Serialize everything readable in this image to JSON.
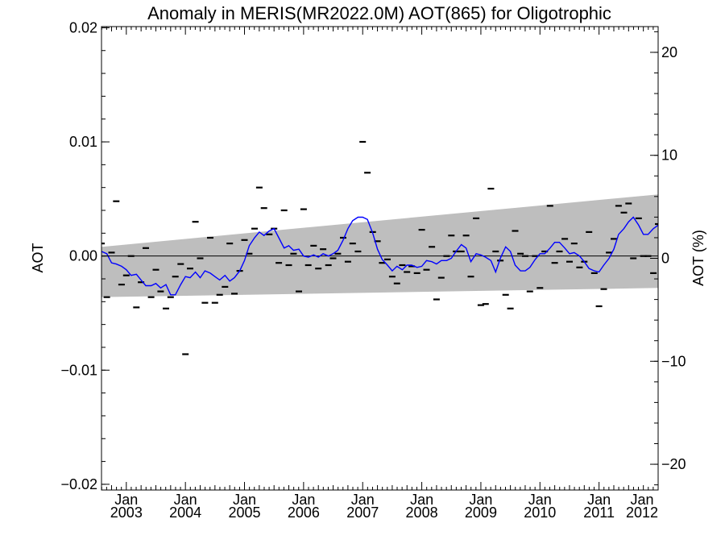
{
  "chart_data": {
    "type": "scatter",
    "title": "Anomaly in MERIS(MR2022.0M) AOT(865) for Oligotrophic",
    "ylabel_left": "AOT",
    "ylabel_right": "AOT (%)",
    "x_axis": {
      "range": [
        2002.58,
        2012.0
      ],
      "tick_labels": [
        {
          "x": 2003.0,
          "month": "Jan",
          "year": "2003"
        },
        {
          "x": 2004.0,
          "month": "Jan",
          "year": "2004"
        },
        {
          "x": 2005.0,
          "month": "Jan",
          "year": "2005"
        },
        {
          "x": 2006.0,
          "month": "Jan",
          "year": "2006"
        },
        {
          "x": 2007.0,
          "month": "Jan",
          "year": "2007"
        },
        {
          "x": 2008.0,
          "month": "Jan",
          "year": "2008"
        },
        {
          "x": 2009.0,
          "month": "Jan",
          "year": "2009"
        },
        {
          "x": 2010.0,
          "month": "Jan",
          "year": "2010"
        },
        {
          "x": 2011.0,
          "month": "Jan",
          "year": "2011"
        },
        {
          "x": 2012.0,
          "month": "Jan",
          "year": "2012"
        }
      ]
    },
    "y_axis_left": {
      "range": [
        -0.0205,
        0.0201
      ],
      "ticks": [
        0.02,
        0.01,
        0.0,
        -0.01,
        -0.02
      ],
      "tick_labels": [
        "0.02",
        "0.01",
        "0.00",
        "−0.01",
        "−0.02"
      ]
    },
    "y_axis_right": {
      "range": [
        -22.5,
        22.5
      ],
      "ticks": [
        20,
        10,
        0,
        -10,
        -20
      ],
      "tick_labels": [
        "20",
        "10",
        "0",
        "−10",
        "−20"
      ]
    },
    "zero_line": 0.0,
    "trend_band": {
      "x": [
        2002.58,
        2012.0
      ],
      "upper": [
        0.0008,
        0.0054
      ],
      "lower": [
        -0.0036,
        -0.0028
      ],
      "color": "#bebebe"
    },
    "monthly_anomalies": {
      "marker": "dash",
      "color": "#000000",
      "points": [
        [
          2002.58,
          0.0011
        ],
        [
          2002.67,
          -0.0036
        ],
        [
          2002.75,
          0.0003
        ],
        [
          2002.83,
          0.0048
        ],
        [
          2002.92,
          -0.0025
        ],
        [
          2003.0,
          -0.0017
        ],
        [
          2003.08,
          0.0
        ],
        [
          2003.17,
          -0.0045
        ],
        [
          2003.25,
          -0.0023
        ],
        [
          2003.33,
          0.0007
        ],
        [
          2003.42,
          -0.0036
        ],
        [
          2003.5,
          -0.0012
        ],
        [
          2003.58,
          -0.0031
        ],
        [
          2003.67,
          -0.0046
        ],
        [
          2003.75,
          -0.0036
        ],
        [
          2003.83,
          -0.0018
        ],
        [
          2003.92,
          -0.0007
        ],
        [
          2004.0,
          -0.0086
        ],
        [
          2004.08,
          -0.0011
        ],
        [
          2004.17,
          0.003
        ],
        [
          2004.25,
          -0.0002
        ],
        [
          2004.33,
          -0.0041
        ],
        [
          2004.42,
          0.0016
        ],
        [
          2004.5,
          -0.0041
        ],
        [
          2004.58,
          -0.0034
        ],
        [
          2004.67,
          -0.0027
        ],
        [
          2004.75,
          0.0011
        ],
        [
          2004.83,
          -0.0033
        ],
        [
          2004.92,
          -0.0013
        ],
        [
          2005.0,
          0.0014
        ],
        [
          2005.08,
          0.0002
        ],
        [
          2005.17,
          0.0024
        ],
        [
          2005.25,
          0.006
        ],
        [
          2005.33,
          0.0042
        ],
        [
          2005.42,
          0.0019
        ],
        [
          2005.5,
          0.0024
        ],
        [
          2005.58,
          -0.0006
        ],
        [
          2005.67,
          0.004
        ],
        [
          2005.75,
          -0.0008
        ],
        [
          2005.83,
          0.0002
        ],
        [
          2005.92,
          -0.0031
        ],
        [
          2006.0,
          0.0041
        ],
        [
          2006.08,
          -0.0008
        ],
        [
          2006.17,
          0.0009
        ],
        [
          2006.25,
          -0.0011
        ],
        [
          2006.33,
          0.0006
        ],
        [
          2006.42,
          -0.0008
        ],
        [
          2006.5,
          -0.0002
        ],
        [
          2006.58,
          0.0002
        ],
        [
          2006.67,
          0.0016
        ],
        [
          2006.75,
          -0.0005
        ],
        [
          2006.83,
          0.0011
        ],
        [
          2006.92,
          0.0004
        ],
        [
          2007.0,
          0.01
        ],
        [
          2007.08,
          0.0073
        ],
        [
          2007.17,
          0.0021
        ],
        [
          2007.25,
          0.0013
        ],
        [
          2007.33,
          -0.0006
        ],
        [
          2007.42,
          -0.0003
        ],
        [
          2007.5,
          -0.0018
        ],
        [
          2007.58,
          -0.0024
        ],
        [
          2007.67,
          -0.0008
        ],
        [
          2007.75,
          -0.0014
        ],
        [
          2007.83,
          -0.0009
        ],
        [
          2007.92,
          -0.0015
        ],
        [
          2008.0,
          0.0023
        ],
        [
          2008.08,
          -0.0012
        ],
        [
          2008.17,
          0.0008
        ],
        [
          2008.25,
          -0.0038
        ],
        [
          2008.33,
          -0.0019
        ],
        [
          2008.42,
          0.0
        ],
        [
          2008.5,
          0.0018
        ],
        [
          2008.58,
          0.0004
        ],
        [
          2008.67,
          0.0004
        ],
        [
          2008.75,
          0.0018
        ],
        [
          2008.83,
          -0.0018
        ],
        [
          2008.92,
          0.0033
        ],
        [
          2009.0,
          -0.0043
        ],
        [
          2009.08,
          -0.0042
        ],
        [
          2009.17,
          0.0059
        ],
        [
          2009.25,
          0.0004
        ],
        [
          2009.33,
          -0.0004
        ],
        [
          2009.42,
          -0.0034
        ],
        [
          2009.5,
          -0.0046
        ],
        [
          2009.58,
          0.0022
        ],
        [
          2009.67,
          0.0002
        ],
        [
          2009.75,
          -0.0
        ],
        [
          2009.83,
          -0.0031
        ],
        [
          2009.92,
          0.0
        ],
        [
          2010.0,
          -0.0028
        ],
        [
          2010.08,
          0.0004
        ],
        [
          2010.17,
          0.0044
        ],
        [
          2010.25,
          -0.0006
        ],
        [
          2010.33,
          0.0004
        ],
        [
          2010.42,
          0.0015
        ],
        [
          2010.5,
          -0.0005
        ],
        [
          2010.58,
          0.0011
        ],
        [
          2010.67,
          -0.001
        ],
        [
          2010.75,
          -0.0005
        ],
        [
          2010.83,
          0.0021
        ],
        [
          2010.92,
          -0.0015
        ],
        [
          2011.0,
          -0.0044
        ],
        [
          2011.08,
          -0.0029
        ],
        [
          2011.17,
          0.0003
        ],
        [
          2011.25,
          0.0015
        ],
        [
          2011.33,
          0.0044
        ],
        [
          2011.42,
          0.0038
        ],
        [
          2011.5,
          0.0046
        ],
        [
          2011.58,
          -0.0002
        ],
        [
          2011.67,
          0.0033
        ],
        [
          2011.75,
          0.0
        ],
        [
          2011.83,
          0.0
        ],
        [
          2011.92,
          -0.0015
        ],
        [
          2012.0,
          0.0028
        ]
      ]
    },
    "smoothed_series": {
      "color": "#0000ff",
      "points": [
        [
          2002.58,
          0.0004
        ],
        [
          2002.67,
          0.0002
        ],
        [
          2002.75,
          -0.0006
        ],
        [
          2002.83,
          -0.0007
        ],
        [
          2002.92,
          -0.0009
        ],
        [
          2003.0,
          -0.0012
        ],
        [
          2003.08,
          -0.0017
        ],
        [
          2003.17,
          -0.0016
        ],
        [
          2003.25,
          -0.0021
        ],
        [
          2003.33,
          -0.0026
        ],
        [
          2003.42,
          -0.0026
        ],
        [
          2003.5,
          -0.0024
        ],
        [
          2003.58,
          -0.0028
        ],
        [
          2003.67,
          -0.0025
        ],
        [
          2003.75,
          -0.0034
        ],
        [
          2003.83,
          -0.0034
        ],
        [
          2003.92,
          -0.0025
        ],
        [
          2004.0,
          -0.0018
        ],
        [
          2004.08,
          -0.0019
        ],
        [
          2004.17,
          -0.0014
        ],
        [
          2004.25,
          -0.0019
        ],
        [
          2004.33,
          -0.0013
        ],
        [
          2004.42,
          -0.0015
        ],
        [
          2004.5,
          -0.0018
        ],
        [
          2004.58,
          -0.0021
        ],
        [
          2004.67,
          -0.0017
        ],
        [
          2004.75,
          -0.0022
        ],
        [
          2004.83,
          -0.0019
        ],
        [
          2004.92,
          -0.0013
        ],
        [
          2005.0,
          -0.0004
        ],
        [
          2005.08,
          0.0009
        ],
        [
          2005.17,
          0.0016
        ],
        [
          2005.25,
          0.0021
        ],
        [
          2005.33,
          0.0018
        ],
        [
          2005.42,
          0.0022
        ],
        [
          2005.5,
          0.0024
        ],
        [
          2005.58,
          0.0016
        ],
        [
          2005.67,
          0.0007
        ],
        [
          2005.75,
          0.0009
        ],
        [
          2005.83,
          0.0005
        ],
        [
          2005.92,
          0.0006
        ],
        [
          2006.0,
          0.0
        ],
        [
          2006.08,
          -0.0001
        ],
        [
          2006.17,
          0.0001
        ],
        [
          2006.25,
          -0.0001
        ],
        [
          2006.33,
          0.0002
        ],
        [
          2006.42,
          -0.0
        ],
        [
          2006.5,
          0.0002
        ],
        [
          2006.58,
          0.0005
        ],
        [
          2006.67,
          0.0014
        ],
        [
          2006.75,
          0.0024
        ],
        [
          2006.83,
          0.0031
        ],
        [
          2006.92,
          0.0034
        ],
        [
          2007.0,
          0.0034
        ],
        [
          2007.08,
          0.0032
        ],
        [
          2007.17,
          0.002
        ],
        [
          2007.25,
          0.0006
        ],
        [
          2007.33,
          -0.0003
        ],
        [
          2007.42,
          -0.0008
        ],
        [
          2007.5,
          -0.0013
        ],
        [
          2007.58,
          -0.0009
        ],
        [
          2007.67,
          -0.0012
        ],
        [
          2007.75,
          -0.0008
        ],
        [
          2007.83,
          -0.0008
        ],
        [
          2007.92,
          -0.001
        ],
        [
          2008.0,
          -0.0009
        ],
        [
          2008.08,
          -0.0004
        ],
        [
          2008.17,
          -0.0005
        ],
        [
          2008.25,
          -0.0007
        ],
        [
          2008.33,
          -0.0004
        ],
        [
          2008.42,
          -0.0004
        ],
        [
          2008.5,
          -0.0002
        ],
        [
          2008.58,
          0.0004
        ],
        [
          2008.67,
          0.001
        ],
        [
          2008.75,
          0.0007
        ],
        [
          2008.83,
          -0.0005
        ],
        [
          2008.92,
          0.0002
        ],
        [
          2009.0,
          0.0001
        ],
        [
          2009.08,
          -0.0001
        ],
        [
          2009.17,
          -0.0004
        ],
        [
          2009.25,
          -0.0014
        ],
        [
          2009.33,
          -0.0002
        ],
        [
          2009.42,
          0.0008
        ],
        [
          2009.5,
          0.0004
        ],
        [
          2009.58,
          -0.0008
        ],
        [
          2009.67,
          -0.0013
        ],
        [
          2009.75,
          -0.0013
        ],
        [
          2009.83,
          -0.001
        ],
        [
          2009.92,
          -0.0003
        ],
        [
          2010.0,
          0.0002
        ],
        [
          2010.08,
          0.0002
        ],
        [
          2010.17,
          0.0007
        ],
        [
          2010.25,
          0.0012
        ],
        [
          2010.33,
          0.0012
        ],
        [
          2010.42,
          0.0007
        ],
        [
          2010.5,
          0.0002
        ],
        [
          2010.58,
          0.0003
        ],
        [
          2010.67,
          0.0
        ],
        [
          2010.75,
          -0.0005
        ],
        [
          2010.83,
          -0.0011
        ],
        [
          2010.92,
          -0.0013
        ],
        [
          2011.0,
          -0.0014
        ],
        [
          2011.08,
          -0.0008
        ],
        [
          2011.17,
          -0.0002
        ],
        [
          2011.25,
          0.0006
        ],
        [
          2011.33,
          0.0019
        ],
        [
          2011.42,
          0.0024
        ],
        [
          2011.5,
          0.003
        ],
        [
          2011.58,
          0.0034
        ],
        [
          2011.67,
          0.0027
        ],
        [
          2011.75,
          0.0019
        ],
        [
          2011.83,
          0.0019
        ],
        [
          2011.92,
          0.0024
        ],
        [
          2012.0,
          0.0027
        ],
        [
          2012.08,
          0.0021
        ]
      ]
    }
  }
}
